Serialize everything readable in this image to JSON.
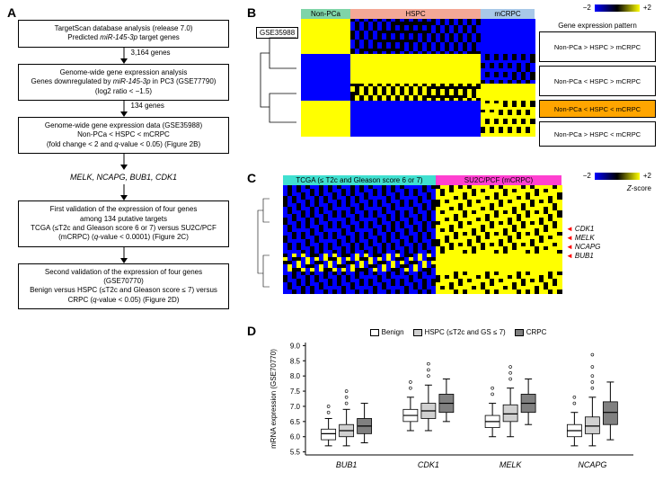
{
  "panels": {
    "A": "A",
    "B": "B",
    "C": "C",
    "D": "D"
  },
  "flowchart": {
    "box1": {
      "line1": "TargetScan database analysis (release 7.0)",
      "line2": "Predicted miR-145-3p target genes"
    },
    "arrow1_label": "3,164 genes",
    "box2": {
      "line1": "Genome-wide gene expression analysis",
      "line2": "Genes downregulated by miR-145-3p in PC3 (GSE77790)",
      "line3": "(log2 ratio < −1.5)"
    },
    "arrow2_label": "134 genes",
    "box3": {
      "line1": "Genome-wide gene expression data (GSE35988)",
      "line2": "Non-PCa < HSPC < mCRPC",
      "line3": "(fold change < 2 and q-value < 0.05) (Figure 2B)"
    },
    "genes": "MELK, NCAPG, BUB1, CDK1",
    "box4": {
      "line1": "First validation of the expression of four genes",
      "line2": "among 134 putative targets",
      "line3": "TCGA (≤T2c and Gleason score 6 or 7) versus SU2C/PCF",
      "line4": "(mCRPC) (q-value < 0.0001) (Figure 2C)"
    },
    "box5": {
      "line1": "Second validation of the expression of four genes (GSE70770)",
      "line2": "Benign versus HSPC (≤T2c and Gleason score ≤ 7) versus",
      "line3": "CRPC (q-value < 0.05) (Figure 2D)"
    }
  },
  "panelB": {
    "dataset_label": "GSE35988",
    "colorbar": {
      "min": "−2",
      "max": "+2"
    },
    "header": [
      {
        "label": "Non-PCa",
        "color": "#7fd4a8",
        "width": 55
      },
      {
        "label": "HSPC",
        "color": "#f4a896",
        "width": 145
      },
      {
        "label": "mCRPC",
        "color": "#a8c8e8",
        "width": 60
      }
    ],
    "pattern_header": "Gene expression pattern",
    "patterns": [
      {
        "text": "Non-PCa > HSPC > mCRPC",
        "highlight": false,
        "height": 34
      },
      {
        "text": "Non-PCa < HSPC > mCRPC",
        "highlight": false,
        "height": 34
      },
      {
        "text": "Non-PCa < HSPC < mCRPC",
        "highlight": true,
        "height": 20
      },
      {
        "text": "Non-PCa > HSPC < mCRPC",
        "highlight": false,
        "height": 28
      }
    ],
    "heatmap_colors": {
      "low": "#0000ff",
      "mid": "#000000",
      "high": "#ffff00"
    }
  },
  "panelC": {
    "colorbar": {
      "min": "−2",
      "max": "+2",
      "label": "Z-score"
    },
    "header": [
      {
        "label": "TCGA (≤ T2c and Gleason score 6 or 7)",
        "color": "#40e0d0",
        "width": 170
      },
      {
        "label": "SU2C/PCF (mCRPC)",
        "color": "#ff40d0",
        "width": 140
      }
    ],
    "gene_arrows": [
      "CDK1",
      "MELK",
      "NCAPG",
      "BUB1"
    ]
  },
  "panelD": {
    "ylabel": "mRNA expression (GSE70770)",
    "yticks": [
      5.5,
      6.0,
      6.5,
      7.0,
      7.5,
      8.0,
      8.5,
      9.0
    ],
    "ylim": [
      5.4,
      9.1
    ],
    "genes": [
      "BUB1",
      "CDK1",
      "MELK",
      "NCAPG"
    ],
    "legend": [
      {
        "label": "Benign",
        "fill": "#ffffff"
      },
      {
        "label": "HSPC (≤T2c and GS ≤ 7)",
        "fill": "#d0d0d0"
      },
      {
        "label": "CRPC",
        "fill": "#808080"
      }
    ],
    "boxes": {
      "BUB1": [
        {
          "q1": 5.9,
          "med": 6.1,
          "q3": 6.25,
          "wl": 5.7,
          "wh": 6.6,
          "out": [
            6.8,
            7.0
          ]
        },
        {
          "q1": 6.0,
          "med": 6.2,
          "q3": 6.4,
          "wl": 5.7,
          "wh": 6.9,
          "out": [
            7.1,
            7.3,
            7.5
          ]
        },
        {
          "q1": 6.1,
          "med": 6.35,
          "q3": 6.6,
          "wl": 5.8,
          "wh": 7.1,
          "out": []
        }
      ],
      "CDK1": [
        {
          "q1": 6.5,
          "med": 6.7,
          "q3": 6.9,
          "wl": 6.2,
          "wh": 7.3,
          "out": [
            7.6,
            7.8
          ]
        },
        {
          "q1": 6.6,
          "med": 6.85,
          "q3": 7.1,
          "wl": 6.2,
          "wh": 7.7,
          "out": [
            8.0,
            8.2,
            8.4
          ]
        },
        {
          "q1": 6.8,
          "med": 7.1,
          "q3": 7.4,
          "wl": 6.5,
          "wh": 7.9,
          "out": []
        }
      ],
      "MELK": [
        {
          "q1": 6.3,
          "med": 6.5,
          "q3": 6.7,
          "wl": 6.0,
          "wh": 7.1,
          "out": [
            7.4,
            7.6
          ]
        },
        {
          "q1": 6.5,
          "med": 6.75,
          "q3": 7.05,
          "wl": 6.0,
          "wh": 7.6,
          "out": [
            7.9,
            8.1,
            8.3
          ]
        },
        {
          "q1": 6.8,
          "med": 7.1,
          "q3": 7.4,
          "wl": 6.4,
          "wh": 7.9,
          "out": []
        }
      ],
      "NCAPG": [
        {
          "q1": 6.0,
          "med": 6.2,
          "q3": 6.4,
          "wl": 5.7,
          "wh": 6.8,
          "out": [
            7.1,
            7.3
          ]
        },
        {
          "q1": 6.1,
          "med": 6.35,
          "q3": 6.65,
          "wl": 5.7,
          "wh": 7.3,
          "out": [
            7.6,
            7.8,
            8.0,
            8.3,
            8.7
          ]
        },
        {
          "q1": 6.4,
          "med": 6.8,
          "q3": 7.15,
          "wl": 5.9,
          "wh": 7.8,
          "out": []
        }
      ]
    }
  }
}
